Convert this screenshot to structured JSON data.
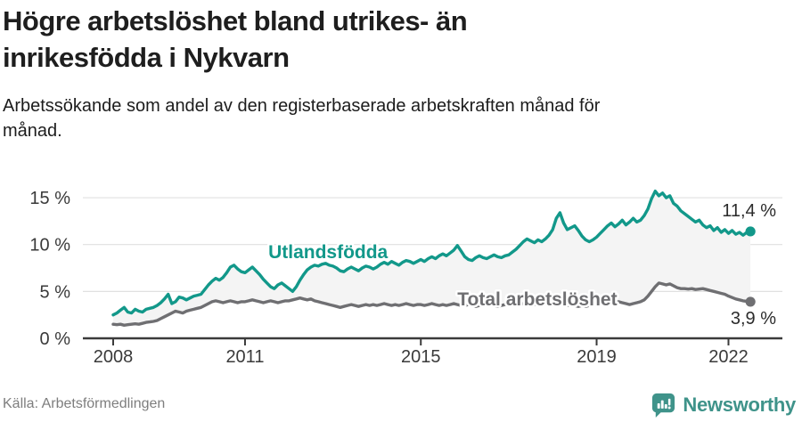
{
  "header": {
    "title": "Högre arbetslöshet bland utrikes- än\ninrikesfödda i Nykvarn",
    "subtitle": "Arbetssökande som andel av den registerbaserade arbetskraften månad för\nmånad."
  },
  "footer": {
    "source": "Källa: Arbetsförmedlingen",
    "brand": "Newsworthy",
    "brand_icon": "newsworthy-bar-chart-bubble-icon"
  },
  "colors": {
    "series_foreign_born": "#12988a",
    "series_total": "#6f6f72",
    "fill_between": "#f4f4f4",
    "grid": "#e0e0e0",
    "axis": "#3b3b3b",
    "tick_label": "#3a3a3a",
    "value_label": "#2b2b2b",
    "brand": "#3f938a",
    "label_halo": "#ffffff"
  },
  "chart_data": {
    "type": "line",
    "frequency": "monthly",
    "x_range": [
      2008.0,
      2022.5
    ],
    "ylim": [
      0,
      16.6
    ],
    "grid": true,
    "x_ticks": [
      {
        "year": 2008,
        "label": "2008"
      },
      {
        "year": 2011,
        "label": "2011"
      },
      {
        "year": 2015,
        "label": "2015"
      },
      {
        "year": 2019,
        "label": "2019"
      },
      {
        "year": 2022,
        "label": "2022"
      }
    ],
    "y_ticks": [
      {
        "value": 0,
        "label": "0 %"
      },
      {
        "value": 5,
        "label": "5 %"
      },
      {
        "value": 10,
        "label": "10 %"
      },
      {
        "value": 15,
        "label": "15 %"
      }
    ],
    "series": [
      {
        "name": "Utlandsfödda",
        "color_key": "series_foreign_born",
        "end_label": "11,4 %",
        "end_label_position": "above",
        "label_anchor": {
          "x_year": 2012.89,
          "y_pct": 8.55
        },
        "values": [
          2.5,
          2.7,
          3.0,
          3.3,
          2.8,
          2.7,
          3.1,
          2.9,
          2.8,
          3.1,
          3.2,
          3.3,
          3.5,
          3.8,
          4.2,
          4.7,
          3.7,
          3.9,
          4.4,
          4.3,
          4.1,
          4.3,
          4.5,
          4.6,
          4.7,
          5.2,
          5.7,
          6.1,
          6.4,
          6.2,
          6.5,
          7.0,
          7.6,
          7.8,
          7.4,
          7.1,
          7.0,
          7.3,
          7.6,
          7.2,
          6.8,
          6.3,
          5.9,
          5.5,
          5.3,
          5.7,
          5.9,
          5.6,
          5.3,
          5.0,
          5.5,
          6.2,
          6.8,
          7.3,
          7.6,
          7.8,
          7.7,
          7.9,
          8.0,
          7.8,
          7.7,
          7.5,
          7.2,
          7.1,
          7.4,
          7.6,
          7.4,
          7.2,
          7.5,
          7.7,
          7.6,
          7.4,
          7.6,
          7.9,
          8.1,
          7.9,
          8.2,
          8.0,
          7.8,
          8.1,
          8.3,
          8.2,
          8.0,
          8.2,
          8.4,
          8.2,
          8.5,
          8.7,
          8.5,
          8.8,
          9.0,
          8.8,
          9.1,
          9.4,
          9.9,
          9.3,
          8.7,
          8.4,
          8.3,
          8.6,
          8.8,
          8.6,
          8.5,
          8.7,
          8.9,
          8.7,
          8.6,
          8.8,
          8.9,
          9.2,
          9.5,
          9.9,
          10.3,
          10.6,
          10.4,
          10.2,
          10.5,
          10.3,
          10.6,
          11.0,
          11.6,
          12.8,
          13.4,
          12.3,
          11.6,
          11.8,
          12.0,
          11.5,
          10.9,
          10.5,
          10.3,
          10.5,
          10.8,
          11.2,
          11.6,
          12.0,
          12.3,
          11.9,
          12.2,
          12.6,
          12.1,
          12.4,
          12.8,
          12.4,
          12.6,
          13.1,
          13.8,
          14.9,
          15.7,
          15.2,
          15.5,
          15.0,
          15.2,
          14.4,
          14.1,
          13.6,
          13.3,
          13.0,
          12.7,
          12.4,
          12.6,
          12.1,
          11.8,
          12.0,
          11.5,
          11.8,
          11.3,
          11.6,
          11.2,
          11.5,
          11.1,
          11.3,
          11.0,
          11.3,
          11.4
        ]
      },
      {
        "name": "Total arbetslöshet",
        "color_key": "series_total",
        "end_label": "3,9 %",
        "end_label_position": "below",
        "label_anchor": {
          "x_year": 2017.65,
          "y_pct": 3.5
        },
        "values": [
          1.5,
          1.45,
          1.5,
          1.4,
          1.45,
          1.5,
          1.55,
          1.5,
          1.6,
          1.7,
          1.75,
          1.8,
          1.9,
          2.1,
          2.3,
          2.5,
          2.7,
          2.9,
          2.8,
          2.7,
          2.9,
          3.0,
          3.1,
          3.2,
          3.3,
          3.5,
          3.7,
          3.9,
          4.0,
          3.9,
          3.8,
          3.9,
          4.0,
          3.9,
          3.8,
          3.9,
          3.9,
          4.0,
          4.1,
          4.0,
          3.9,
          3.8,
          3.9,
          4.0,
          3.9,
          3.8,
          3.9,
          4.0,
          4.0,
          4.1,
          4.2,
          4.3,
          4.2,
          4.1,
          4.2,
          4.0,
          3.9,
          3.8,
          3.7,
          3.6,
          3.5,
          3.4,
          3.3,
          3.4,
          3.5,
          3.6,
          3.5,
          3.4,
          3.5,
          3.6,
          3.5,
          3.6,
          3.5,
          3.6,
          3.7,
          3.6,
          3.5,
          3.6,
          3.5,
          3.6,
          3.7,
          3.6,
          3.5,
          3.6,
          3.6,
          3.5,
          3.6,
          3.7,
          3.6,
          3.5,
          3.6,
          3.5,
          3.6,
          3.7,
          3.6,
          3.5,
          3.5,
          3.6,
          3.5,
          3.4,
          3.5,
          3.6,
          3.5,
          3.6,
          3.5,
          3.4,
          3.5,
          3.6,
          3.5,
          3.6,
          3.5,
          3.6,
          3.7,
          3.6,
          3.5,
          3.6,
          3.7,
          3.6,
          3.7,
          3.8,
          3.7,
          3.8,
          3.7,
          3.6,
          3.5,
          3.6,
          3.5,
          3.4,
          3.5,
          3.4,
          3.5,
          3.6,
          3.5,
          3.6,
          3.7,
          3.6,
          3.7,
          3.8,
          3.9,
          3.8,
          3.7,
          3.6,
          3.7,
          3.8,
          3.9,
          4.1,
          4.5,
          5.0,
          5.5,
          5.9,
          5.8,
          5.7,
          5.8,
          5.6,
          5.4,
          5.3,
          5.3,
          5.25,
          5.3,
          5.2,
          5.25,
          5.3,
          5.2,
          5.1,
          5.0,
          4.9,
          4.8,
          4.7,
          4.5,
          4.35,
          4.2,
          4.1,
          4.0,
          3.95,
          3.9
        ]
      }
    ]
  }
}
